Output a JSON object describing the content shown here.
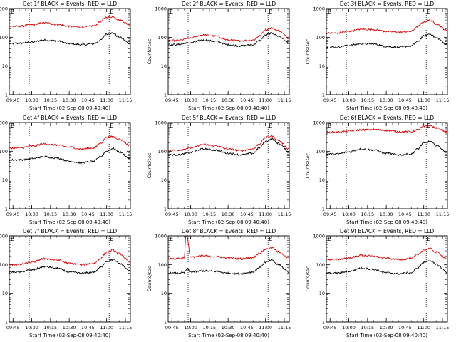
{
  "figure": {
    "common_xlabel": "Start Time (02-Sep-08 09:40:40)",
    "common_ylabel": "Counts/sec",
    "x_tick_labels": [
      "09:45",
      "10:00",
      "10:15",
      "10:30",
      "10:45",
      "11:00",
      "11:15"
    ],
    "y_tick_labels": [
      "1",
      "10",
      "100",
      "1000"
    ],
    "event_marker_letter": "E",
    "colors": {
      "events": "#000000",
      "lld": "#dd0000",
      "background": "#ffffff"
    }
  },
  "chart_data": [
    {
      "type": "line",
      "title": "Det 1f BLACK = Events, RED = LLD",
      "xlabel": "Start Time (02-Sep-08 09:40:40)",
      "ylabel": "Counts/sec",
      "y_scale": "log",
      "ylim": [
        1,
        1000
      ],
      "xlim": [
        "09:42",
        "11:19"
      ],
      "x": [
        "09:42",
        "09:50",
        "10:00",
        "10:10",
        "10:20",
        "10:30",
        "10:40",
        "10:50",
        "10:55",
        "11:00",
        "11:05",
        "11:10",
        "11:19"
      ],
      "series": [
        {
          "name": "Events",
          "values": [
            60,
            62,
            68,
            80,
            75,
            60,
            55,
            60,
            80,
            130,
            140,
            100,
            60
          ]
        },
        {
          "name": "LLD",
          "values": [
            240,
            240,
            270,
            320,
            280,
            240,
            220,
            250,
            350,
            500,
            520,
            400,
            270
          ]
        }
      ],
      "vlines": [
        "09:58",
        "11:02"
      ],
      "marker_label": "E"
    },
    {
      "type": "line",
      "title": "Det 2f BLACK = Events, RED = LLD",
      "xlabel": "Start Time (02-Sep-08 09:40:40)",
      "ylabel": "Counts/sec",
      "y_scale": "log",
      "ylim": [
        1,
        1000
      ],
      "xlim": [
        "09:42",
        "11:19"
      ],
      "x": [
        "09:42",
        "09:50",
        "10:00",
        "10:10",
        "10:20",
        "10:30",
        "10:40",
        "10:50",
        "10:55",
        "11:00",
        "11:05",
        "11:10",
        "11:19"
      ],
      "series": [
        {
          "name": "Events",
          "values": [
            55,
            56,
            65,
            80,
            72,
            55,
            50,
            55,
            75,
            120,
            140,
            110,
            65
          ]
        },
        {
          "name": "LLD",
          "values": [
            75,
            78,
            95,
            120,
            110,
            80,
            75,
            80,
            110,
            180,
            210,
            170,
            95
          ]
        }
      ],
      "vlines": [
        "09:58",
        "11:02"
      ],
      "marker_label": "E"
    },
    {
      "type": "line",
      "title": "Det 3f BLACK = Events, RED = LLD",
      "xlabel": "Start Time (02-Sep-08 09:40:40)",
      "ylabel": "Counts/sec",
      "y_scale": "log",
      "ylim": [
        1,
        1000
      ],
      "xlim": [
        "09:42",
        "11:19"
      ],
      "x": [
        "09:42",
        "09:50",
        "10:00",
        "10:10",
        "10:20",
        "10:30",
        "10:40",
        "10:50",
        "10:55",
        "11:00",
        "11:05",
        "11:10",
        "11:19"
      ],
      "series": [
        {
          "name": "Events",
          "values": [
            45,
            45,
            52,
            60,
            58,
            48,
            45,
            50,
            70,
            110,
            130,
            95,
            55
          ]
        },
        {
          "name": "LLD",
          "values": [
            140,
            140,
            160,
            190,
            185,
            160,
            150,
            160,
            230,
            340,
            390,
            290,
            170
          ]
        }
      ],
      "vlines": [
        "09:58",
        "11:02"
      ],
      "marker_label": "E"
    },
    {
      "type": "line",
      "title": "Det 4f BLACK = Events, RED = LLD",
      "xlabel": "Start Time (02-Sep-08 09:40:40)",
      "ylabel": "Counts/sec",
      "y_scale": "log",
      "ylim": [
        1,
        1000
      ],
      "xlim": [
        "09:42",
        "11:19"
      ],
      "x": [
        "09:42",
        "09:50",
        "10:00",
        "10:10",
        "10:20",
        "10:30",
        "10:40",
        "10:50",
        "10:55",
        "11:00",
        "11:05",
        "11:10",
        "11:19"
      ],
      "series": [
        {
          "name": "Events",
          "values": [
            50,
            50,
            55,
            65,
            58,
            45,
            40,
            45,
            65,
            100,
            125,
            95,
            55
          ]
        },
        {
          "name": "LLD",
          "values": [
            130,
            130,
            150,
            180,
            165,
            140,
            120,
            130,
            190,
            300,
            330,
            260,
            160
          ]
        }
      ],
      "vlines": [
        "09:58",
        "11:02"
      ],
      "marker_label": "E"
    },
    {
      "type": "line",
      "title": "Det 5f BLACK = Events, RED = LLD",
      "xlabel": "Start Time (02-Sep-08 09:40:40)",
      "ylabel": "Counts/sec",
      "y_scale": "log",
      "ylim": [
        1,
        1000
      ],
      "xlim": [
        "09:42",
        "11:19"
      ],
      "x": [
        "09:42",
        "09:50",
        "10:00",
        "10:10",
        "10:20",
        "10:30",
        "10:40",
        "10:50",
        "10:55",
        "11:00",
        "11:05",
        "11:10",
        "11:19"
      ],
      "series": [
        {
          "name": "Events",
          "values": [
            75,
            75,
            90,
            120,
            110,
            85,
            75,
            85,
            130,
            220,
            270,
            190,
            95
          ]
        },
        {
          "name": "LLD",
          "values": [
            110,
            110,
            130,
            170,
            155,
            120,
            105,
            120,
            180,
            300,
            340,
            240,
            120
          ]
        }
      ],
      "vlines": [
        "09:58",
        "11:02"
      ],
      "marker_label": "E"
    },
    {
      "type": "line",
      "title": "Det 6f BLACK = Events, RED = LLD",
      "xlabel": "Start Time (02-Sep-08 09:40:40)",
      "ylabel": "Counts/sec",
      "y_scale": "log",
      "ylim": [
        1,
        1000
      ],
      "xlim": [
        "09:42",
        "11:19"
      ],
      "x": [
        "09:42",
        "09:50",
        "10:00",
        "10:10",
        "10:20",
        "10:30",
        "10:40",
        "10:50",
        "10:55",
        "11:00",
        "11:05",
        "11:10",
        "11:19"
      ],
      "series": [
        {
          "name": "Events",
          "values": [
            80,
            80,
            95,
            120,
            110,
            85,
            75,
            80,
            120,
            190,
            220,
            160,
            90
          ]
        },
        {
          "name": "LLD",
          "values": [
            450,
            460,
            500,
            560,
            570,
            530,
            480,
            480,
            560,
            720,
            780,
            650,
            480
          ]
        }
      ],
      "vlines": [
        "09:58",
        "11:02"
      ],
      "marker_label": "E"
    },
    {
      "type": "line",
      "title": "Det 7f BLACK = Events, RED = LLD",
      "xlabel": "Start Time (02-Sep-08 09:40:40)",
      "ylabel": "Counts/sec",
      "y_scale": "log",
      "ylim": [
        1,
        1000
      ],
      "xlim": [
        "09:42",
        "11:19"
      ],
      "x": [
        "09:42",
        "09:50",
        "10:00",
        "10:10",
        "10:20",
        "10:30",
        "10:40",
        "10:50",
        "10:55",
        "11:00",
        "11:05",
        "11:10",
        "11:19"
      ],
      "series": [
        {
          "name": "Events",
          "values": [
            55,
            55,
            65,
            85,
            75,
            55,
            50,
            55,
            80,
            130,
            150,
            110,
            60
          ]
        },
        {
          "name": "LLD",
          "values": [
            100,
            100,
            120,
            160,
            145,
            110,
            100,
            110,
            160,
            270,
            320,
            240,
            120
          ]
        }
      ],
      "vlines": [
        "09:58",
        "11:02"
      ],
      "marker_label": "E"
    },
    {
      "type": "line",
      "title": "Det 8f BLACK = Events, RED = LLD",
      "xlabel": "Start Time (02-Sep-08 09:40:40)",
      "ylabel": "Counts/sec",
      "y_scale": "log",
      "ylim": [
        1,
        1000
      ],
      "xlim": [
        "09:42",
        "11:19"
      ],
      "x": [
        "09:42",
        "09:50",
        "09:55",
        "09:56",
        "09:57",
        "10:00",
        "10:10",
        "10:20",
        "10:30",
        "10:40",
        "10:50",
        "10:55",
        "11:00",
        "11:05",
        "11:10",
        "11:19"
      ],
      "series": [
        {
          "name": "Events",
          "values": [
            50,
            50,
            52,
            60,
            70,
            55,
            60,
            58,
            50,
            48,
            55,
            80,
            120,
            140,
            100,
            55
          ]
        },
        {
          "name": "LLD",
          "values": [
            160,
            160,
            170,
            1000,
            1000,
            180,
            200,
            190,
            170,
            160,
            175,
            250,
            340,
            390,
            280,
            170
          ]
        }
      ],
      "vlines": [
        "09:58",
        "11:02"
      ],
      "marker_label": "E"
    },
    {
      "type": "line",
      "title": "Det 9f BLACK = Events, RED = LLD",
      "xlabel": "Start Time (02-Sep-08 09:40:40)",
      "ylabel": "Counts/sec",
      "y_scale": "log",
      "ylim": [
        1,
        1000
      ],
      "xlim": [
        "09:42",
        "11:19"
      ],
      "x": [
        "09:42",
        "09:50",
        "10:00",
        "10:10",
        "10:20",
        "10:30",
        "10:40",
        "10:50",
        "10:55",
        "11:00",
        "11:05",
        "11:10",
        "11:19"
      ],
      "series": [
        {
          "name": "Events",
          "values": [
            50,
            50,
            58,
            75,
            68,
            52,
            48,
            52,
            75,
            120,
            140,
            100,
            55
          ]
        },
        {
          "name": "LLD",
          "values": [
            150,
            150,
            170,
            210,
            195,
            165,
            150,
            160,
            220,
            320,
            360,
            270,
            160
          ]
        }
      ],
      "vlines": [
        "09:58",
        "11:02"
      ],
      "marker_label": "E"
    }
  ]
}
